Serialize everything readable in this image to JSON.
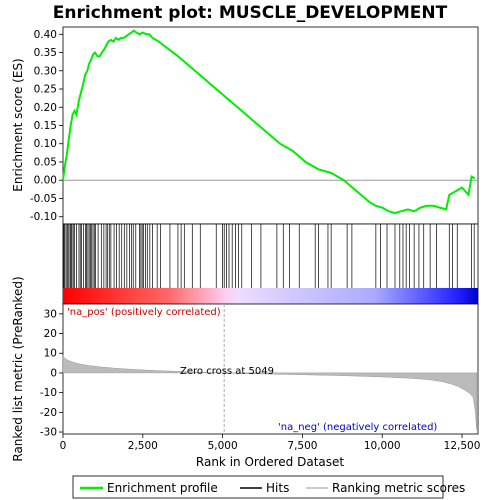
{
  "chart_data": {
    "type": "line",
    "title": "Enrichment plot: MUSCLE_DEVELOPMENT",
    "xlabel": "Rank in Ordered Dataset",
    "ylabel_top": "Enrichment score (ES)",
    "ylabel_bottom": "Ranked list metric (PreRanked)",
    "xlim": [
      0,
      13000
    ],
    "ylim_top": [
      -0.12,
      0.42
    ],
    "ylim_bottom": [
      -31,
      35
    ],
    "x_ticks": [
      0,
      2500,
      5000,
      7500,
      10000,
      12500
    ],
    "x_tick_labels": [
      "0",
      "2,500",
      "5,000",
      "7,500",
      "10,000",
      "12,500"
    ],
    "y_ticks_top": [
      -0.1,
      -0.05,
      0.0,
      0.05,
      0.1,
      0.15,
      0.2,
      0.25,
      0.3,
      0.35,
      0.4
    ],
    "y_tick_labels_top": [
      "-0.10",
      "-0.05",
      "0.00",
      "0.05",
      "0.10",
      "0.15",
      "0.20",
      "0.25",
      "0.30",
      "0.35",
      "0.40"
    ],
    "y_ticks_bottom": [
      -30,
      -20,
      -10,
      0,
      10,
      20,
      30
    ],
    "y_tick_labels_bottom": [
      "-30",
      "-20",
      "-10",
      "0",
      "10",
      "20",
      "30"
    ],
    "annotations": {
      "pos_label": "'na_pos' (positively correlated)",
      "neg_label": "'na_neg' (negatively correlated)",
      "zero_cross": "Zero cross at 5049",
      "zero_cross_x": 5049
    },
    "legend": {
      "placement": "bottom",
      "entries": [
        "Enrichment profile",
        "Hits",
        "Ranking metric scores"
      ]
    },
    "colors": {
      "profile": "#00ee00",
      "hits": "#000000",
      "metric": "#bbbbbb",
      "pos_band": "#ff0000",
      "neg_band": "#0000ff"
    },
    "es_profile": {
      "x": [
        0,
        60,
        120,
        180,
        240,
        300,
        360,
        420,
        500,
        560,
        620,
        700,
        760,
        820,
        880,
        940,
        1000,
        1080,
        1150,
        1220,
        1300,
        1360,
        1420,
        1500,
        1580,
        1660,
        1740,
        1820,
        1900,
        1980,
        2060,
        2140,
        2220,
        2300,
        2400,
        2500,
        2600,
        2700,
        2800,
        3000,
        3300,
        3600,
        4000,
        4400,
        4800,
        5200,
        5600,
        6000,
        6400,
        6800,
        7200,
        7600,
        8000,
        8200,
        8400,
        8600,
        8800,
        9000,
        9200,
        9400,
        9600,
        9800,
        10000,
        10200,
        10400,
        10600,
        10800,
        11000,
        11200,
        11400,
        11600,
        11800,
        12000,
        12100,
        12300,
        12500,
        12700,
        12800,
        12900
      ],
      "y": [
        0.0,
        0.04,
        0.07,
        0.11,
        0.15,
        0.18,
        0.19,
        0.18,
        0.22,
        0.24,
        0.26,
        0.29,
        0.3,
        0.32,
        0.33,
        0.345,
        0.35,
        0.34,
        0.34,
        0.35,
        0.36,
        0.37,
        0.38,
        0.385,
        0.38,
        0.39,
        0.385,
        0.39,
        0.39,
        0.395,
        0.4,
        0.405,
        0.41,
        0.405,
        0.4,
        0.405,
        0.4,
        0.4,
        0.39,
        0.38,
        0.36,
        0.34,
        0.31,
        0.28,
        0.25,
        0.22,
        0.19,
        0.16,
        0.13,
        0.1,
        0.08,
        0.05,
        0.03,
        0.025,
        0.02,
        0.01,
        0.0,
        -0.015,
        -0.03,
        -0.045,
        -0.06,
        -0.07,
        -0.075,
        -0.085,
        -0.09,
        -0.085,
        -0.08,
        -0.085,
        -0.075,
        -0.07,
        -0.07,
        -0.075,
        -0.08,
        -0.04,
        -0.03,
        -0.02,
        -0.04,
        0.01,
        0.005
      ]
    },
    "hits": [
      5,
      30,
      60,
      100,
      140,
      180,
      220,
      250,
      280,
      320,
      360,
      420,
      500,
      540,
      580,
      640,
      700,
      740,
      780,
      820,
      860,
      900,
      940,
      980,
      1020,
      1100,
      1200,
      1280,
      1350,
      1400,
      1450,
      1500,
      1600,
      1680,
      1760,
      1840,
      1920,
      2000,
      2080,
      2150,
      2200,
      2280,
      2400,
      2440,
      2480,
      2520,
      2580,
      2640,
      2720,
      2800,
      2950,
      3050,
      3350,
      3600,
      3700,
      3800,
      4050,
      4300,
      4800,
      5000,
      5050,
      5120,
      5200,
      5300,
      5400,
      5500,
      5600,
      5900,
      6200,
      6700,
      6900,
      7100,
      7400,
      7900,
      8000,
      8300,
      8400,
      8900,
      9050,
      9800,
      9950,
      10150,
      10400,
      10550,
      10650,
      10750,
      10850,
      11000,
      11150,
      11300,
      11500,
      11700,
      12100,
      12200,
      12350,
      12800,
      12880
    ],
    "metric": {
      "x": [
        0,
        50,
        150,
        300,
        500,
        800,
        1200,
        1700,
        2200,
        2800,
        3400,
        4000,
        4600,
        5049,
        5600,
        6200,
        6800,
        7400,
        8000,
        8600,
        9200,
        9800,
        10400,
        11000,
        11500,
        11900,
        12200,
        12400,
        12600,
        12750,
        12850,
        12920,
        12960
      ],
      "y": [
        9,
        7.5,
        6.5,
        5.5,
        4.6,
        3.8,
        3.0,
        2.3,
        1.8,
        1.3,
        0.9,
        0.5,
        0.2,
        0.0,
        -0.3,
        -0.5,
        -0.7,
        -0.9,
        -1.1,
        -1.3,
        -1.6,
        -1.9,
        -2.3,
        -2.8,
        -3.5,
        -4.5,
        -5.8,
        -7.0,
        -8.8,
        -10.5,
        -12.5,
        -20,
        -29
      ]
    }
  }
}
